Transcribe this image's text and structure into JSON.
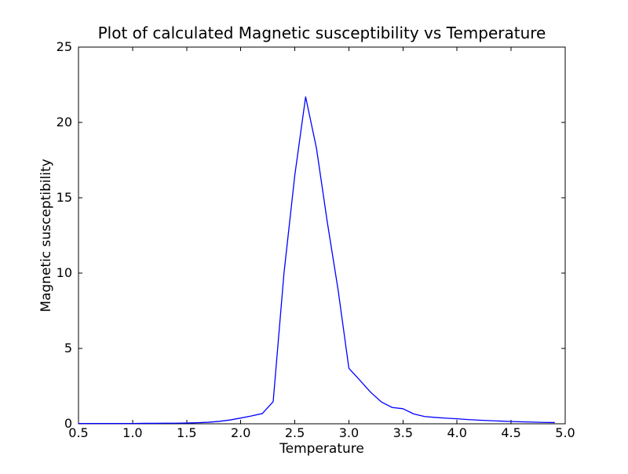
{
  "chart_data": {
    "type": "line",
    "title": "Plot of calculated Magnetic susceptibility vs Temperature",
    "xlabel": "Temperature",
    "ylabel": "Magnetic susceptibility",
    "xlim": [
      0.5,
      5.0
    ],
    "ylim": [
      0,
      25
    ],
    "xtick_values": [
      0.5,
      1.0,
      1.5,
      2.0,
      2.5,
      3.0,
      3.5,
      4.0,
      4.5,
      5.0
    ],
    "xtick_labels": [
      "0.5",
      "1.0",
      "1.5",
      "2.0",
      "2.5",
      "3.0",
      "3.5",
      "4.0",
      "4.5",
      "5.0"
    ],
    "ytick_values": [
      0,
      5,
      10,
      15,
      20,
      25
    ],
    "ytick_labels": [
      "0",
      "5",
      "10",
      "15",
      "20",
      "25"
    ],
    "grid": false,
    "legend": null,
    "background_color": "#ffffff",
    "axes_color": "#000000",
    "line_color": "#0000ff",
    "series": [
      {
        "name": "calculated magnetic susceptibility",
        "x": [
          0.5,
          0.6,
          0.7,
          0.8,
          0.9,
          1.0,
          1.1,
          1.2,
          1.3,
          1.4,
          1.5,
          1.6,
          1.7,
          1.8,
          1.9,
          2.0,
          2.1,
          2.2,
          2.3,
          2.4,
          2.5,
          2.6,
          2.7,
          2.8,
          2.9,
          3.0,
          3.1,
          3.2,
          3.3,
          3.4,
          3.5,
          3.6,
          3.7,
          3.8,
          3.9,
          4.0,
          4.1,
          4.2,
          4.3,
          4.4,
          4.5,
          4.6,
          4.7,
          4.8,
          4.9
        ],
        "y": [
          0.02,
          0.02,
          0.02,
          0.02,
          0.02,
          0.02,
          0.03,
          0.03,
          0.04,
          0.04,
          0.05,
          0.07,
          0.1,
          0.16,
          0.25,
          0.38,
          0.52,
          0.68,
          1.47,
          10.0,
          16.5,
          21.7,
          18.3,
          13.4,
          8.9,
          3.68,
          2.9,
          2.1,
          1.45,
          1.08,
          1.0,
          0.65,
          0.48,
          0.42,
          0.37,
          0.33,
          0.28,
          0.24,
          0.21,
          0.18,
          0.15,
          0.13,
          0.11,
          0.09,
          0.08
        ]
      }
    ]
  }
}
